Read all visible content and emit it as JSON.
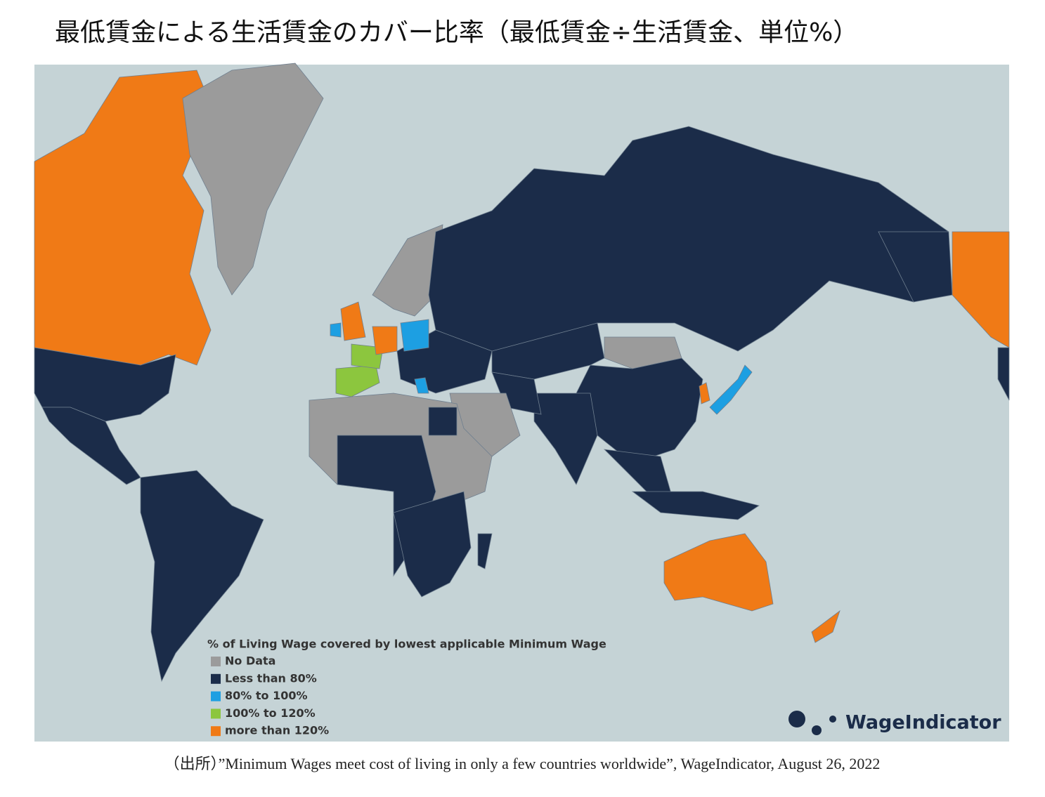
{
  "header": {
    "title": "最低賃金による生活賃金のカバー比率（最低賃金÷生活賃金、単位%）"
  },
  "map": {
    "legend": {
      "title": "% of Living Wage covered by lowest applicable Minimum Wage",
      "items": [
        {
          "label": "No Data",
          "color": "#9b9b9b"
        },
        {
          "label": "Less than 80%",
          "color": "#1b2c49"
        },
        {
          "label": "80% to 100%",
          "color": "#1d9fe2"
        },
        {
          "label": "100% to 120%",
          "color": "#8cc63e"
        },
        {
          "label": "more than 120%",
          "color": "#f07a16"
        }
      ]
    },
    "logo": "WageIndicator"
  },
  "source": "（出所）”Minimum Wages meet cost of living in only a few countries worldwide”, WageIndicator, August 26, 2022"
}
